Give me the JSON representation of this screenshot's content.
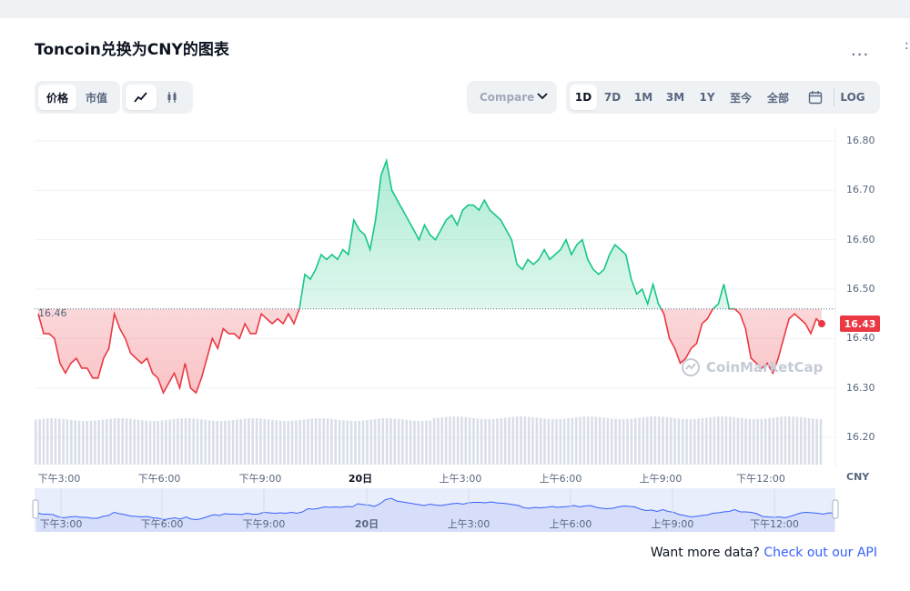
{
  "header": {
    "title": "Toncoin兑换为CNY的图表",
    "more_label": "..."
  },
  "toggles": {
    "metric": [
      {
        "label": "价格",
        "active": true
      },
      {
        "label": "市值",
        "active": false
      }
    ],
    "chart_style": [
      {
        "icon": "line-chart-icon",
        "active": true
      },
      {
        "icon": "candlestick-icon",
        "active": false
      }
    ]
  },
  "compare": {
    "label": "Compare"
  },
  "ranges": [
    {
      "label": "1D",
      "active": true
    },
    {
      "label": "7D",
      "active": false
    },
    {
      "label": "1M",
      "active": false
    },
    {
      "label": "3M",
      "active": false
    },
    {
      "label": "1Y",
      "active": false
    },
    {
      "label": "至今",
      "active": false
    },
    {
      "label": "全部",
      "active": false
    },
    {
      "icon": "calendar-icon",
      "active": false
    },
    {
      "label": "LOG",
      "active": false
    }
  ],
  "watermark": "CoinMarketCap",
  "footer": {
    "text": "Want more data?",
    "link": "Check out our API"
  },
  "colors": {
    "up": "#16c784",
    "down": "#ea3943",
    "grid": "#eff2f5",
    "accent": "#3861fb"
  },
  "chart_data": {
    "type": "line",
    "title": "Toncoin兑换为CNY的图表",
    "currency": "CNY",
    "reference_price": 16.46,
    "reference_label": "16.46",
    "current_price": 16.43,
    "current_label": "16.43",
    "y_ticks": [
      "16.80",
      "16.70",
      "16.60",
      "16.50",
      "16.40",
      "16.30",
      "16.20"
    ],
    "ylim": [
      16.2,
      16.82
    ],
    "x_ticks": [
      "下午3:00",
      "下午6:00",
      "下午9:00",
      "20日",
      "上午3:00",
      "上午6:00",
      "上午9:00",
      "下午12:00"
    ],
    "nav_ticks": [
      "下午3:00",
      "下午6:00",
      "下午9:00",
      "20日",
      "上午3:00",
      "上午6:00",
      "上午9:00",
      "下午12:00"
    ],
    "prices": [
      16.45,
      16.41,
      16.41,
      16.4,
      16.35,
      16.33,
      16.35,
      16.36,
      16.34,
      16.34,
      16.32,
      16.32,
      16.36,
      16.38,
      16.45,
      16.42,
      16.4,
      16.37,
      16.36,
      16.35,
      16.36,
      16.33,
      16.32,
      16.29,
      16.31,
      16.33,
      16.3,
      16.35,
      16.3,
      16.29,
      16.32,
      16.36,
      16.4,
      16.38,
      16.42,
      16.41,
      16.41,
      16.4,
      16.43,
      16.41,
      16.41,
      16.45,
      16.44,
      16.43,
      16.44,
      16.43,
      16.45,
      16.43,
      16.46,
      16.53,
      16.52,
      16.54,
      16.57,
      16.56,
      16.57,
      16.56,
      16.58,
      16.57,
      16.64,
      16.62,
      16.61,
      16.58,
      16.64,
      16.73,
      16.76,
      16.7,
      16.68,
      16.66,
      16.64,
      16.62,
      16.6,
      16.63,
      16.61,
      16.6,
      16.62,
      16.64,
      16.65,
      16.63,
      16.66,
      16.67,
      16.67,
      16.66,
      16.68,
      16.66,
      16.65,
      16.64,
      16.62,
      16.6,
      16.55,
      16.54,
      16.56,
      16.55,
      16.56,
      16.58,
      16.56,
      16.57,
      16.58,
      16.6,
      16.57,
      16.59,
      16.6,
      16.56,
      16.54,
      16.53,
      16.54,
      16.57,
      16.59,
      16.58,
      16.57,
      16.52,
      16.49,
      16.5,
      16.47,
      16.51,
      16.47,
      16.45,
      16.4,
      16.38,
      16.35,
      16.36,
      16.38,
      16.39,
      16.43,
      16.44,
      16.46,
      16.47,
      16.51,
      16.46,
      16.46,
      16.45,
      16.42,
      16.36,
      16.35,
      16.34,
      16.35,
      16.33,
      16.36,
      16.4,
      16.44,
      16.45,
      16.44,
      16.43,
      16.41,
      16.44,
      16.43
    ]
  }
}
